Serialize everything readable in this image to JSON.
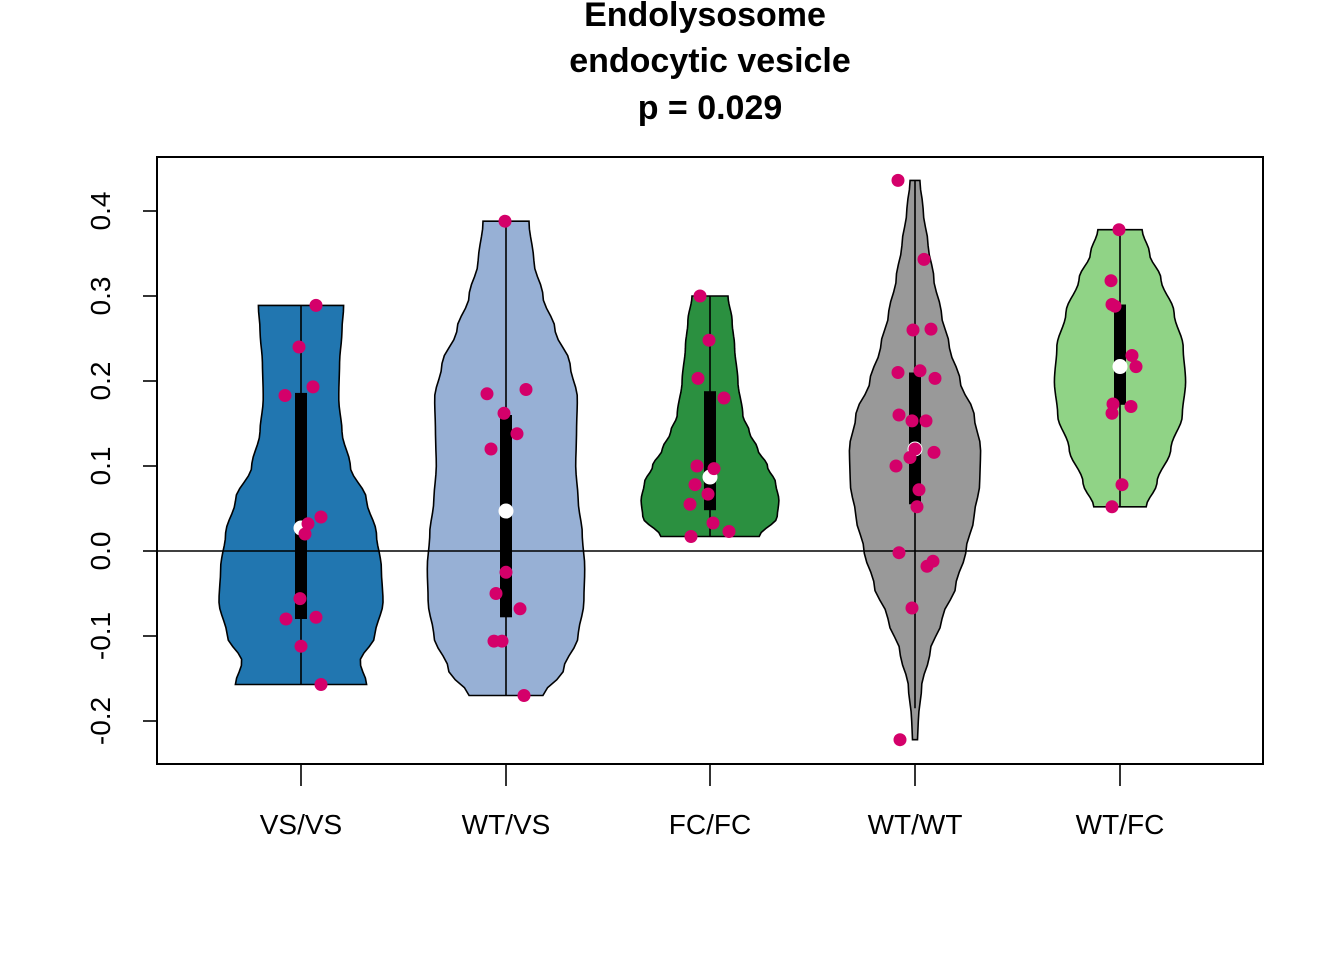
{
  "chart_data": {
    "type": "violin",
    "title_lines": [
      "Endolysosome",
      "endocytic vesicle",
      "p = 0.029"
    ],
    "xlabel": "",
    "ylabel": "",
    "categories": [
      "VS/VS",
      "WT/VS",
      "FC/FC",
      "WT/WT",
      "WT/FC"
    ],
    "ylim": [
      -0.25,
      0.46
    ],
    "yticks": [
      -0.2,
      -0.1,
      0.0,
      0.1,
      0.2,
      0.3,
      0.4
    ],
    "ytick_labels": [
      "-0.2",
      "-0.1",
      "0.0",
      "0.1",
      "0.2",
      "0.3",
      "0.4"
    ],
    "reference_line_y": 0,
    "point_color": "#d4006a",
    "median_color": "#ffffff",
    "groups": [
      {
        "category": "VS/VS",
        "color": "#2176b0",
        "min": -0.157,
        "q1": -0.08,
        "median": 0.027,
        "q3": 0.186,
        "max": 0.289,
        "profile": [
          [
            -0.157,
            0.8
          ],
          [
            -0.13,
            0.72
          ],
          [
            -0.1,
            0.9
          ],
          [
            -0.06,
            1.0
          ],
          [
            -0.02,
            0.98
          ],
          [
            0.02,
            0.92
          ],
          [
            0.06,
            0.8
          ],
          [
            0.1,
            0.6
          ],
          [
            0.14,
            0.5
          ],
          [
            0.18,
            0.46
          ],
          [
            0.22,
            0.47
          ],
          [
            0.26,
            0.5
          ],
          [
            0.289,
            0.52
          ]
        ],
        "points": [
          [
            -0.157,
            0.2
          ],
          [
            -0.112,
            0.0
          ],
          [
            -0.08,
            -0.15
          ],
          [
            -0.078,
            0.15
          ],
          [
            -0.056,
            -0.01
          ],
          [
            0.02,
            0.04
          ],
          [
            0.032,
            0.07
          ],
          [
            0.04,
            0.2
          ],
          [
            0.183,
            -0.16
          ],
          [
            0.193,
            0.12
          ],
          [
            0.24,
            -0.02
          ],
          [
            0.289,
            0.15
          ]
        ]
      },
      {
        "category": "WT/VS",
        "color": "#97b0d5",
        "min": -0.17,
        "q1": -0.078,
        "median": 0.047,
        "q3": 0.16,
        "max": 0.388,
        "profile": [
          [
            -0.17,
            0.45
          ],
          [
            -0.14,
            0.7
          ],
          [
            -0.1,
            0.88
          ],
          [
            -0.06,
            0.95
          ],
          [
            -0.02,
            0.96
          ],
          [
            0.02,
            0.93
          ],
          [
            0.06,
            0.88
          ],
          [
            0.1,
            0.85
          ],
          [
            0.14,
            0.86
          ],
          [
            0.18,
            0.87
          ],
          [
            0.22,
            0.78
          ],
          [
            0.26,
            0.6
          ],
          [
            0.3,
            0.45
          ],
          [
            0.34,
            0.34
          ],
          [
            0.388,
            0.28
          ]
        ],
        "points": [
          [
            -0.17,
            0.18
          ],
          [
            -0.106,
            -0.12
          ],
          [
            -0.106,
            -0.04
          ],
          [
            -0.068,
            0.14
          ],
          [
            -0.05,
            -0.1
          ],
          [
            -0.025,
            0.0
          ],
          [
            0.12,
            -0.15
          ],
          [
            0.138,
            0.11
          ],
          [
            0.162,
            -0.02
          ],
          [
            0.185,
            -0.19
          ],
          [
            0.19,
            0.2
          ],
          [
            0.388,
            -0.01
          ]
        ]
      },
      {
        "category": "FC/FC",
        "color": "#2b9040",
        "min": 0.017,
        "q1": 0.048,
        "median": 0.087,
        "q3": 0.188,
        "max": 0.3,
        "profile": [
          [
            0.017,
            0.6
          ],
          [
            0.04,
            0.82
          ],
          [
            0.06,
            0.84
          ],
          [
            0.08,
            0.8
          ],
          [
            0.1,
            0.7
          ],
          [
            0.12,
            0.58
          ],
          [
            0.14,
            0.48
          ],
          [
            0.16,
            0.4
          ],
          [
            0.2,
            0.34
          ],
          [
            0.24,
            0.3
          ],
          [
            0.27,
            0.27
          ],
          [
            0.3,
            0.22
          ]
        ],
        "points": [
          [
            0.017,
            -0.19
          ],
          [
            0.023,
            0.19
          ],
          [
            0.033,
            0.03
          ],
          [
            0.055,
            -0.2
          ],
          [
            0.067,
            -0.02
          ],
          [
            0.078,
            -0.15
          ],
          [
            0.097,
            0.04
          ],
          [
            0.1,
            -0.13
          ],
          [
            0.18,
            0.14
          ],
          [
            0.203,
            -0.12
          ],
          [
            0.248,
            -0.01
          ],
          [
            0.3,
            -0.1
          ]
        ]
      },
      {
        "category": "WT/WT",
        "color": "#999999",
        "min": -0.222,
        "q1": 0.055,
        "median": 0.12,
        "q3": 0.21,
        "max": 0.436,
        "whisker_low": -0.185,
        "profile": [
          [
            -0.222,
            0.03
          ],
          [
            -0.2,
            0.04
          ],
          [
            -0.16,
            0.08
          ],
          [
            -0.12,
            0.18
          ],
          [
            -0.08,
            0.33
          ],
          [
            -0.04,
            0.5
          ],
          [
            0.0,
            0.62
          ],
          [
            0.04,
            0.72
          ],
          [
            0.08,
            0.79
          ],
          [
            0.12,
            0.8
          ],
          [
            0.16,
            0.72
          ],
          [
            0.2,
            0.55
          ],
          [
            0.24,
            0.42
          ],
          [
            0.28,
            0.32
          ],
          [
            0.32,
            0.23
          ],
          [
            0.36,
            0.16
          ],
          [
            0.4,
            0.1
          ],
          [
            0.436,
            0.06
          ]
        ],
        "points": [
          [
            -0.222,
            -0.15
          ],
          [
            -0.067,
            -0.03
          ],
          [
            -0.018,
            0.12
          ],
          [
            -0.012,
            0.18
          ],
          [
            -0.002,
            -0.16
          ],
          [
            0.052,
            0.02
          ],
          [
            0.072,
            0.04
          ],
          [
            0.1,
            -0.19
          ],
          [
            0.11,
            -0.05
          ],
          [
            0.116,
            0.19
          ],
          [
            0.12,
            0.0
          ],
          [
            0.153,
            -0.03
          ],
          [
            0.153,
            0.11
          ],
          [
            0.16,
            -0.16
          ],
          [
            0.203,
            0.2
          ],
          [
            0.21,
            -0.17
          ],
          [
            0.212,
            0.05
          ],
          [
            0.26,
            -0.02
          ],
          [
            0.261,
            0.16
          ],
          [
            0.343,
            0.09
          ],
          [
            0.436,
            -0.17
          ]
        ]
      },
      {
        "category": "WT/FC",
        "color": "#90d386",
        "min": 0.052,
        "q1": 0.172,
        "median": 0.217,
        "q3": 0.29,
        "max": 0.378,
        "profile": [
          [
            0.052,
            0.32
          ],
          [
            0.08,
            0.45
          ],
          [
            0.12,
            0.62
          ],
          [
            0.16,
            0.76
          ],
          [
            0.2,
            0.8
          ],
          [
            0.24,
            0.77
          ],
          [
            0.28,
            0.66
          ],
          [
            0.32,
            0.5
          ],
          [
            0.35,
            0.36
          ],
          [
            0.378,
            0.27
          ]
        ],
        "points": [
          [
            0.052,
            -0.08
          ],
          [
            0.078,
            0.02
          ],
          [
            0.162,
            -0.08
          ],
          [
            0.17,
            0.11
          ],
          [
            0.173,
            -0.07
          ],
          [
            0.217,
            0.16
          ],
          [
            0.23,
            0.12
          ],
          [
            0.288,
            -0.05
          ],
          [
            0.29,
            -0.08
          ],
          [
            0.318,
            -0.09
          ],
          [
            0.378,
            -0.01
          ]
        ]
      }
    ]
  }
}
